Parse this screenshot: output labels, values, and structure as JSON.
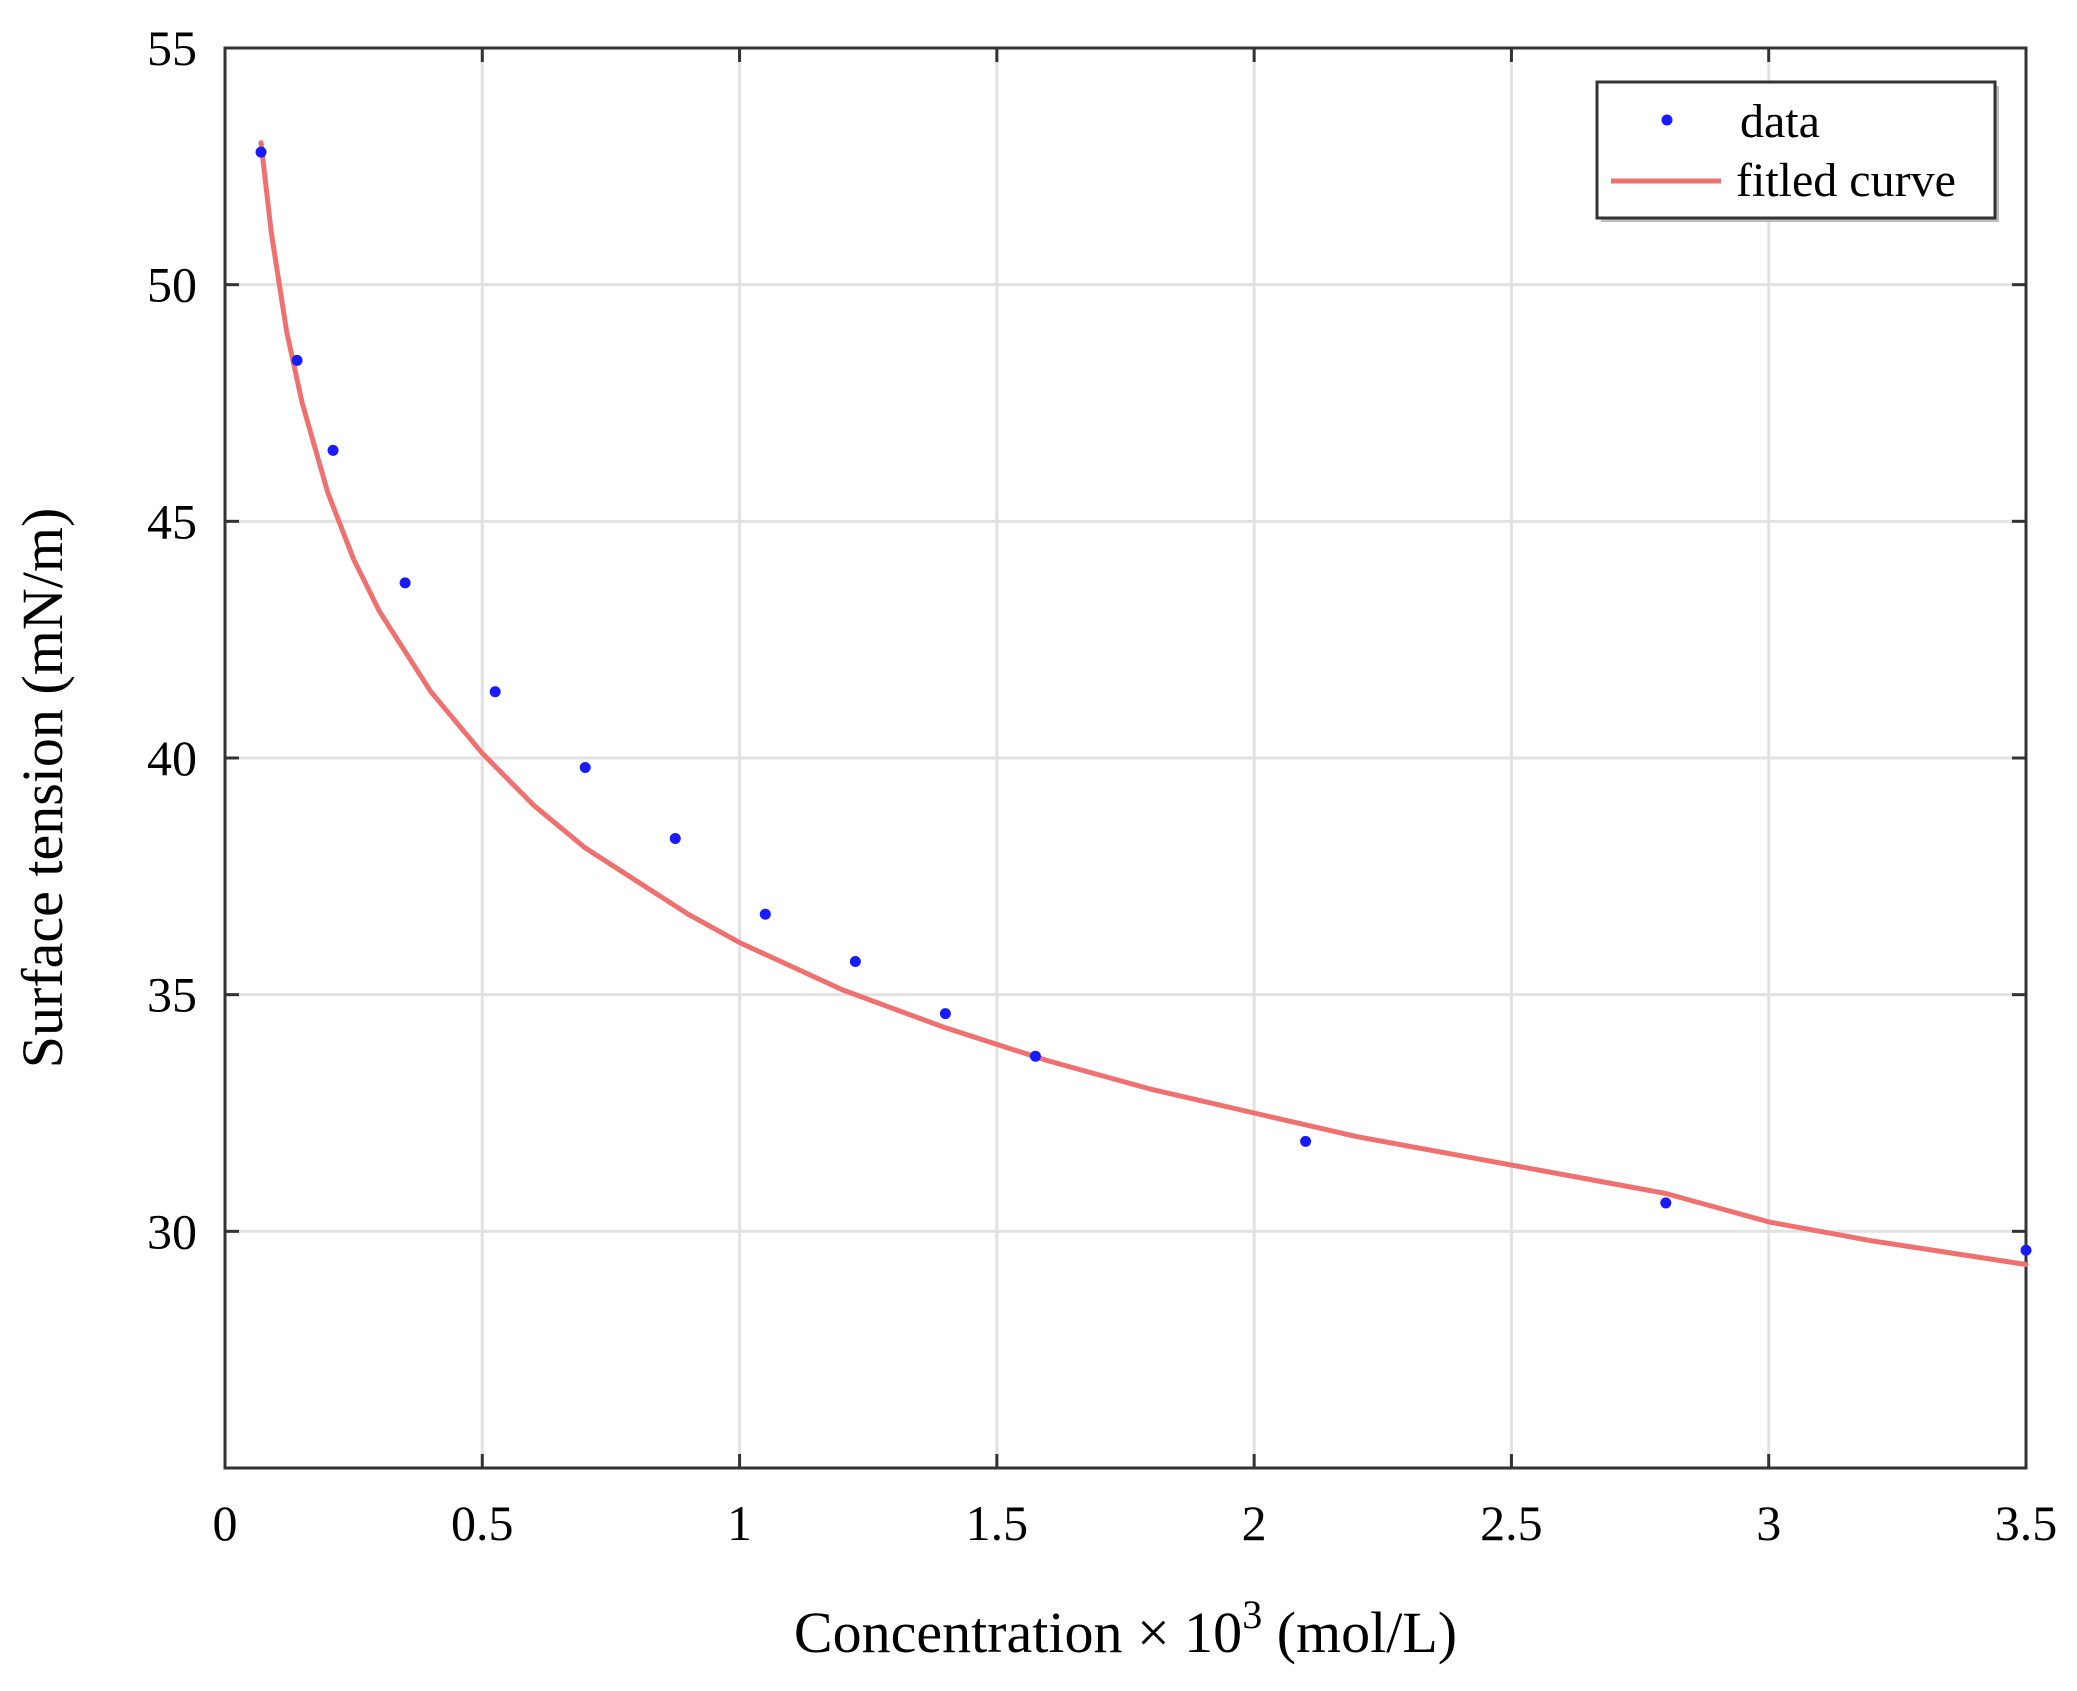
{
  "chart_data": {
    "type": "scatter",
    "xlabel": {
      "main": "Concentration × 10",
      "superscript": "3",
      "unit": " (mol/L)"
    },
    "ylabel": "Surface tension (mN/m)",
    "xlim": [
      0,
      3.5
    ],
    "ylim": [
      25,
      55
    ],
    "xticks": [
      0,
      0.5,
      1,
      1.5,
      2,
      2.5,
      3,
      3.5
    ],
    "xtick_labels": [
      "0",
      "0.5",
      "1",
      "1.5",
      "2",
      "2.5",
      "3",
      "3.5"
    ],
    "yticks": [
      30,
      35,
      40,
      45,
      50,
      55
    ],
    "ytick_labels": [
      "30",
      "35",
      "40",
      "45",
      "50",
      "55"
    ],
    "grid": true,
    "legend_position": "top-right",
    "series": [
      {
        "name": "data",
        "kind": "points",
        "color": "#1a1aff",
        "x": [
          0.07,
          0.14,
          0.21,
          0.35,
          0.525,
          0.7,
          0.875,
          1.05,
          1.225,
          1.4,
          1.575,
          2.1,
          2.8,
          3.5
        ],
        "y": [
          52.8,
          48.4,
          46.5,
          43.7,
          41.4,
          39.8,
          38.3,
          36.7,
          35.7,
          34.6,
          33.7,
          31.9,
          30.6,
          29.6
        ]
      },
      {
        "name": "fitled curve",
        "kind": "line",
        "color": "#f07070",
        "x": [
          0.07,
          0.09,
          0.12,
          0.15,
          0.2,
          0.25,
          0.3,
          0.4,
          0.5,
          0.6,
          0.7,
          0.8,
          0.9,
          1.0,
          1.2,
          1.4,
          1.6,
          1.8,
          2.0,
          2.2,
          2.4,
          2.6,
          2.8,
          3.0,
          3.2,
          3.5
        ],
        "y": [
          53.0,
          51.1,
          49.0,
          47.5,
          45.6,
          44.2,
          43.1,
          41.4,
          40.1,
          39.0,
          38.1,
          37.4,
          36.7,
          36.1,
          35.1,
          34.3,
          33.6,
          33.0,
          32.5,
          32.0,
          31.6,
          31.2,
          30.8,
          30.2,
          29.8,
          29.3
        ]
      }
    ]
  }
}
